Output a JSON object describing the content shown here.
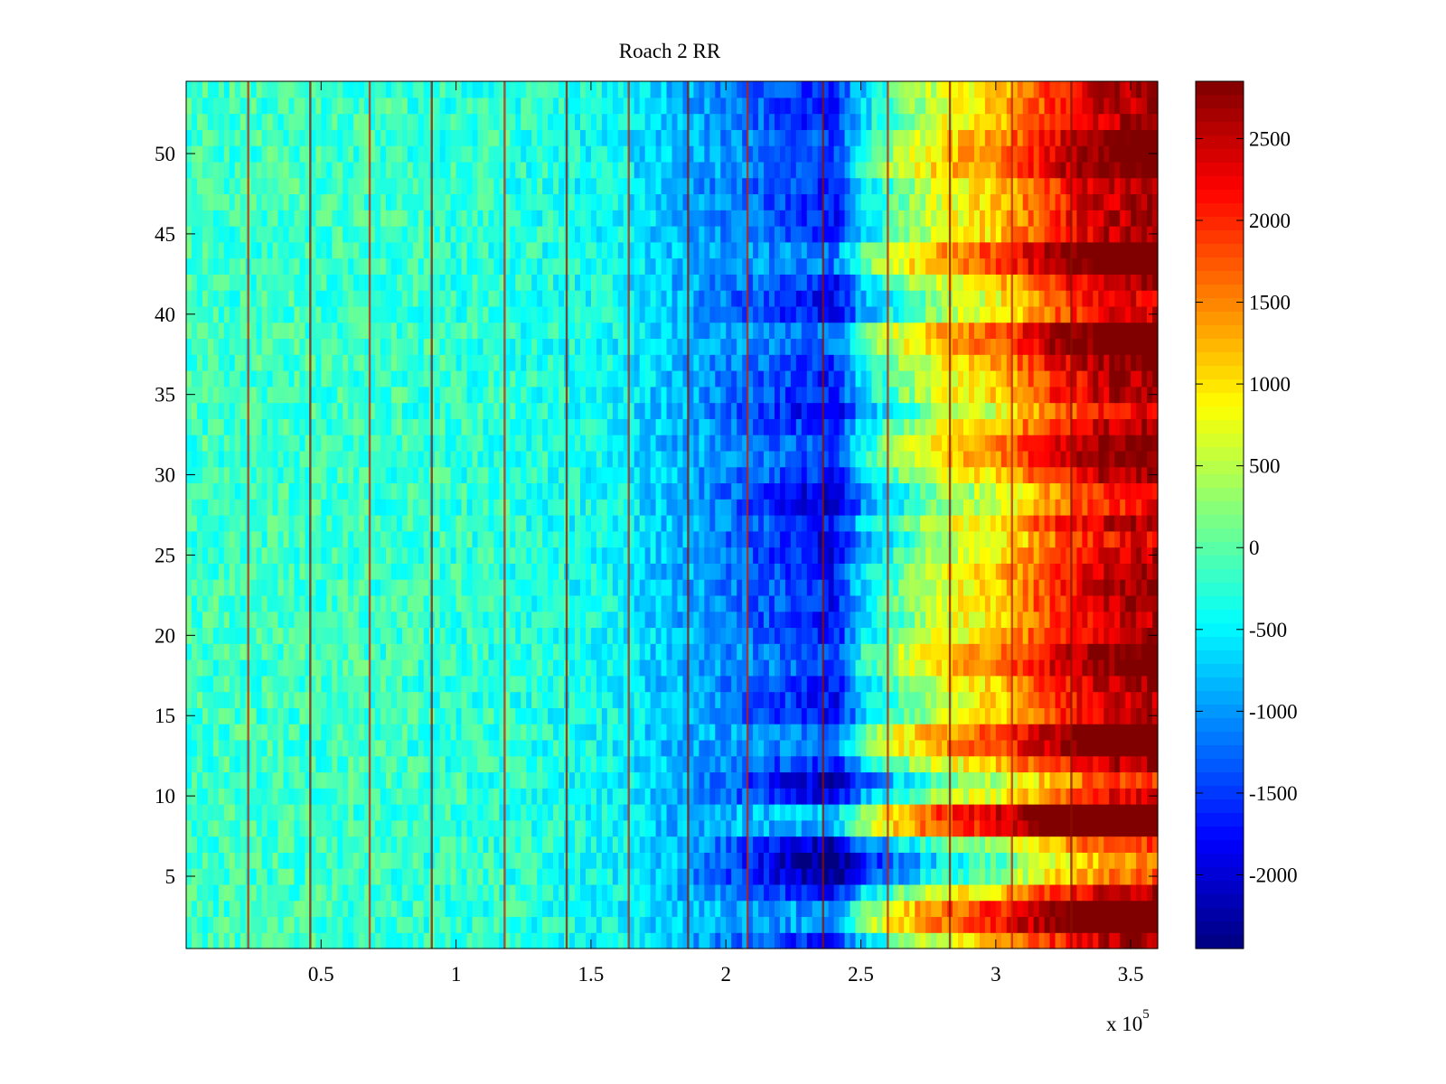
{
  "chart_data": {
    "type": "heatmap",
    "title": "Roach 2 RR",
    "xlabel": "",
    "ylabel": "",
    "x_exponent_label": "x 10",
    "x_exponent_power": "5",
    "colormap": "jet",
    "xlim": [
      0,
      360000
    ],
    "ylim": [
      0.5,
      54.5
    ],
    "clim": [
      -2450,
      2850
    ],
    "n_rows": 54,
    "x_ticks": [
      0.5,
      1,
      1.5,
      2,
      2.5,
      3,
      3.5
    ],
    "x_tick_labels": [
      "0.5",
      "1",
      "1.5",
      "2",
      "2.5",
      "3",
      "3.5"
    ],
    "y_ticks": [
      5,
      10,
      15,
      20,
      25,
      30,
      35,
      40,
      45,
      50
    ],
    "y_tick_labels": [
      "5",
      "10",
      "15",
      "20",
      "25",
      "30",
      "35",
      "40",
      "45",
      "50"
    ],
    "colorbar_ticks": [
      -2000,
      -1500,
      -1000,
      -500,
      0,
      500,
      1000,
      1500,
      2000,
      2500
    ],
    "colorbar_tick_labels": [
      "-2000",
      "-1500",
      "-1000",
      "-500",
      "0",
      "500",
      "1000",
      "1500",
      "2000",
      "2500"
    ],
    "baseline_profile": {
      "x": [
        0,
        60000,
        120000,
        160000,
        180000,
        200000,
        220000,
        235000,
        240000,
        250000,
        265000,
        280000,
        300000,
        320000,
        340000,
        360000
      ],
      "value": [
        -150,
        -150,
        -250,
        -450,
        -800,
        -1100,
        -1400,
        -1600,
        -1750,
        -700,
        100,
        700,
        1100,
        1900,
        2500,
        2700
      ]
    },
    "artifact_lines_x": [
      23000,
      46000,
      68000,
      91000,
      118000,
      141000,
      164000,
      186000,
      208000,
      236000,
      260000,
      283000,
      306000,
      328000
    ],
    "row_offsets": [
      0,
      900,
      900,
      0,
      -1000,
      -1200,
      -700,
      1100,
      1200,
      -300,
      -700,
      0,
      700,
      700,
      -100,
      -100,
      0,
      400,
      400,
      0,
      -100,
      0,
      0,
      0,
      -200,
      -400,
      0,
      -500,
      -500,
      0,
      300,
      300,
      0,
      -400,
      0,
      0,
      200,
      600,
      600,
      -300,
      -300,
      0,
      700,
      700,
      0,
      0,
      0,
      0,
      400,
      400,
      300,
      0,
      0,
      0
    ]
  }
}
